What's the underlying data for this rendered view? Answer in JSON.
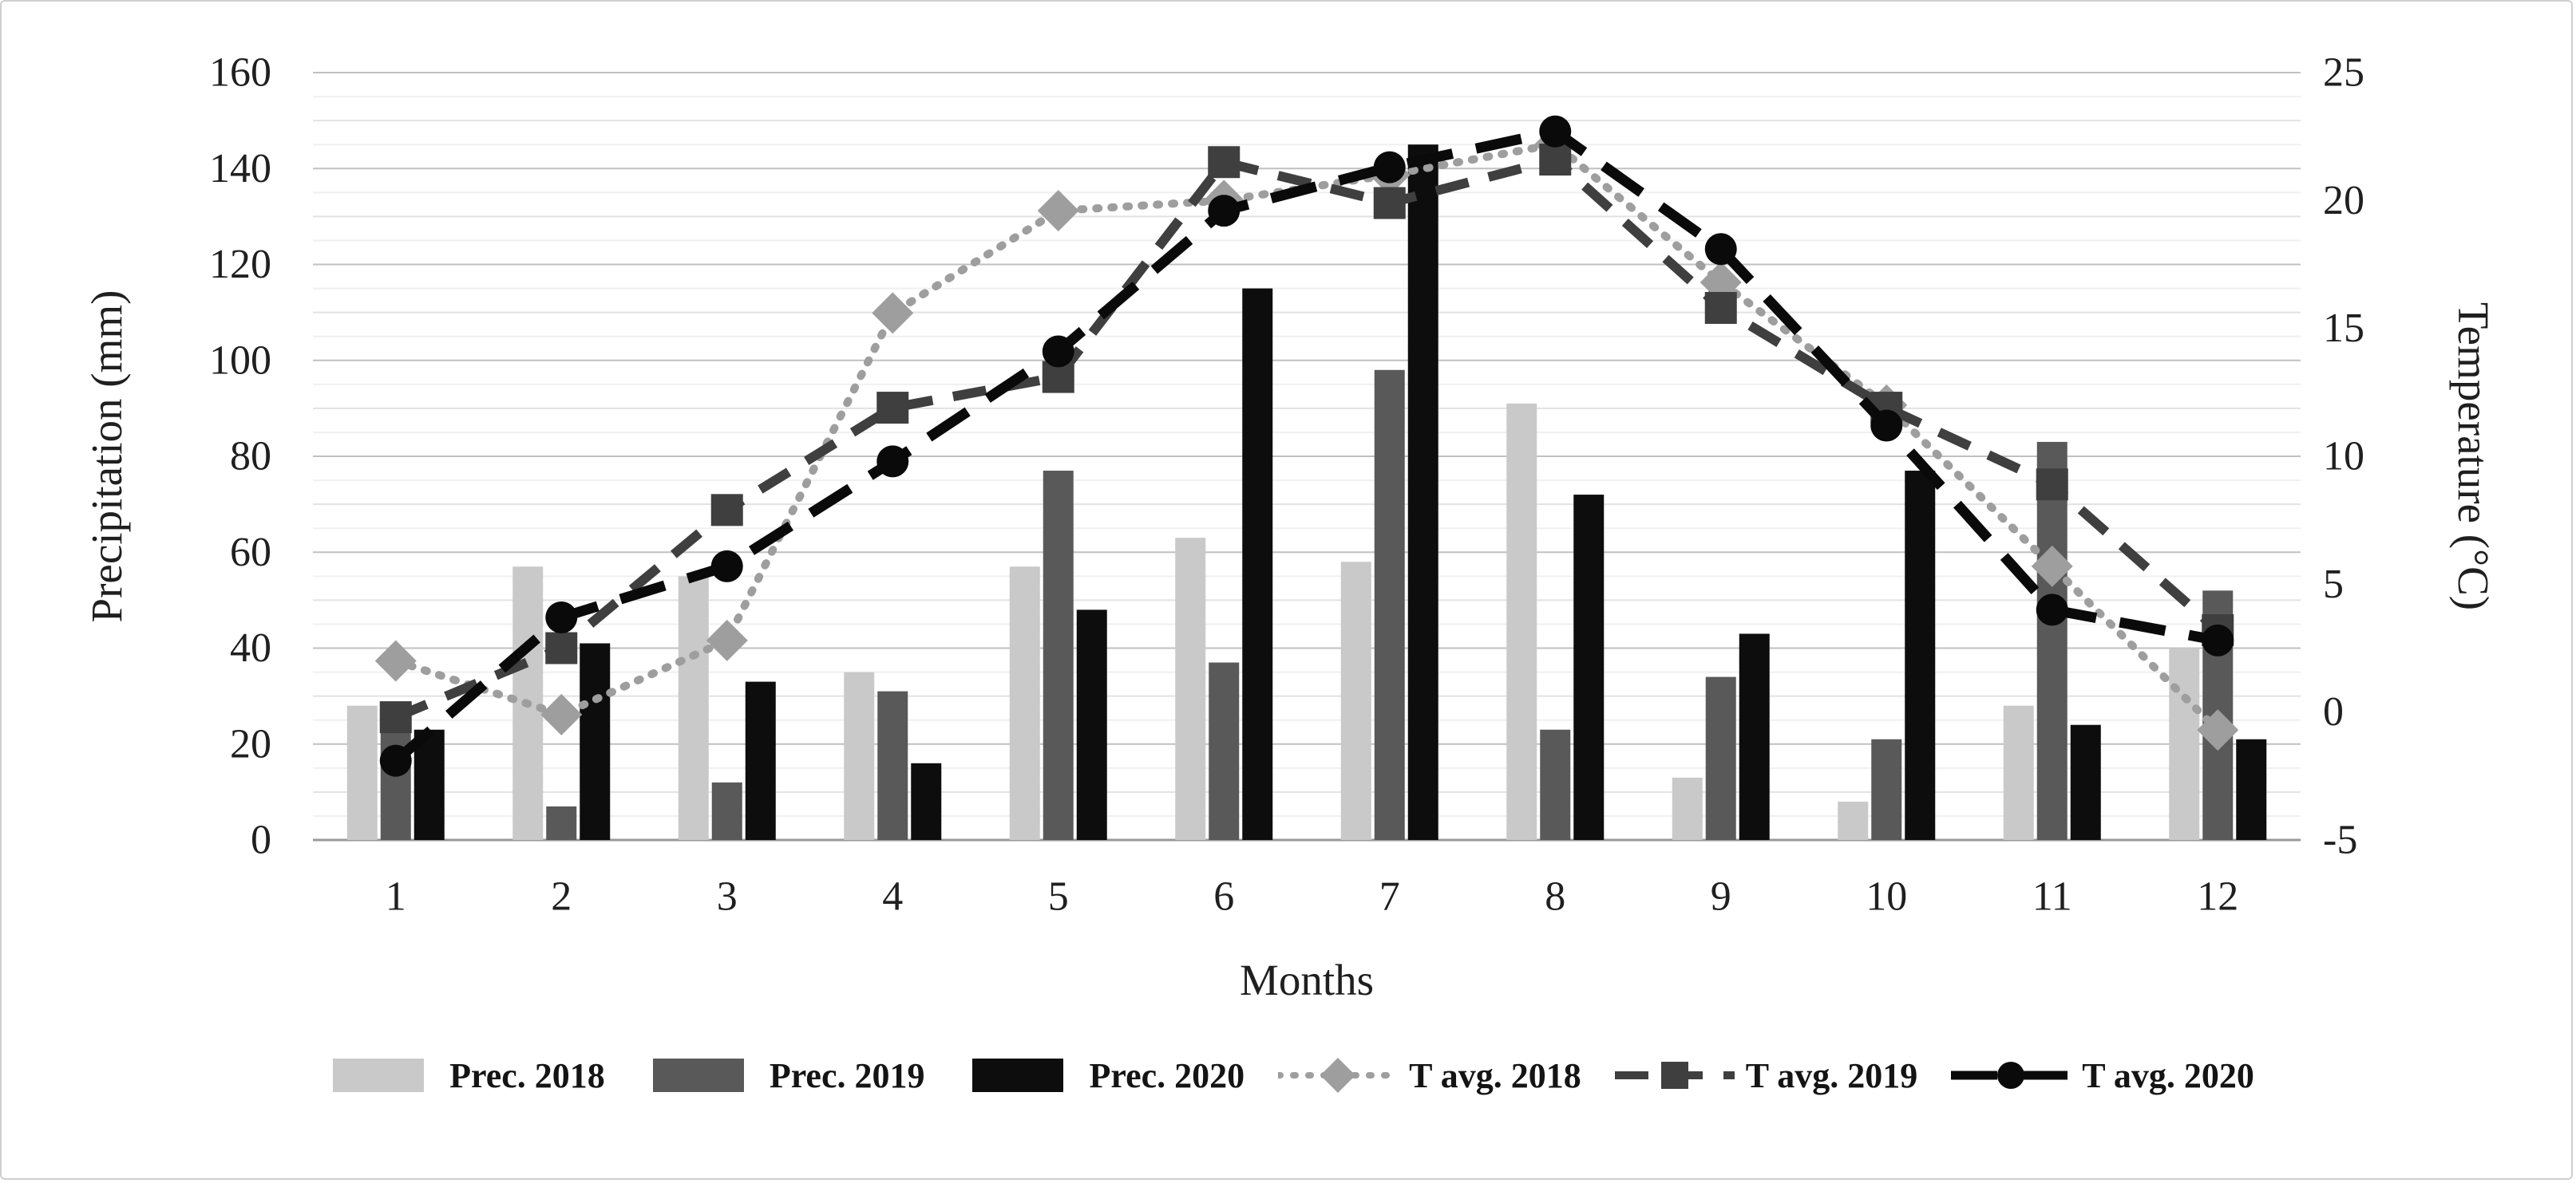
{
  "chart_data": {
    "type": "combo-bar-line",
    "title": "",
    "categories": [
      "1",
      "2",
      "3",
      "4",
      "5",
      "6",
      "7",
      "8",
      "9",
      "10",
      "11",
      "12"
    ],
    "xlabel": "Months",
    "y_left": {
      "label": "Precipitation (mm)",
      "min": 0,
      "max": 160,
      "tick_step": 20,
      "ticks": [
        "0",
        "20",
        "40",
        "60",
        "80",
        "100",
        "120",
        "140",
        "160"
      ]
    },
    "y_right": {
      "label": "Temperature (°C)",
      "min": -5,
      "max": 25,
      "tick_step": 5,
      "ticks": [
        "-5",
        "0",
        "5",
        "10",
        "15",
        "20",
        "25"
      ]
    },
    "grid": {
      "minor_step_mm": 5,
      "major_step_mm": 20,
      "minor_color": "#f0f0f0",
      "mid_color": "#e2e2e2",
      "major_color": "#c0c0c0",
      "axis_line_color": "#999999"
    },
    "bar_series": [
      {
        "name": "Prec. 2018",
        "color": "#c9c9c9",
        "values": [
          28,
          57,
          55,
          35,
          57,
          63,
          58,
          91,
          13,
          8,
          28,
          40
        ]
      },
      {
        "name": "Prec. 2019",
        "color": "#595959",
        "values": [
          25,
          7,
          12,
          31,
          77,
          37,
          98,
          23,
          34,
          21,
          83,
          52
        ]
      },
      {
        "name": "Prec. 2020",
        "color": "#0d0d0d",
        "values": [
          23,
          41,
          33,
          16,
          48,
          115,
          145,
          72,
          43,
          77,
          24,
          21
        ]
      }
    ],
    "line_series": [
      {
        "name": "T avg. 2018",
        "color": "#9e9e9e",
        "marker": "diamond",
        "dash": "dotted",
        "values": [
          2.0,
          -0.1,
          2.8,
          15.6,
          19.6,
          20.0,
          21.0,
          22.2,
          16.8,
          12.0,
          5.7,
          -0.7
        ]
      },
      {
        "name": "T avg. 2019",
        "color": "#3f3f3f",
        "marker": "square",
        "dash": "dashed",
        "values": [
          -0.2,
          2.5,
          7.9,
          11.9,
          13.1,
          21.5,
          19.9,
          21.6,
          15.8,
          11.9,
          8.9,
          3.2
        ]
      },
      {
        "name": "T avg. 2020",
        "color": "#0a0a0a",
        "marker": "circle",
        "dash": "long-dash",
        "values": [
          -1.9,
          3.7,
          5.7,
          9.8,
          14.1,
          19.6,
          21.3,
          22.7,
          18.1,
          11.2,
          4.0,
          2.8
        ]
      }
    ],
    "legend_position": "bottom"
  }
}
